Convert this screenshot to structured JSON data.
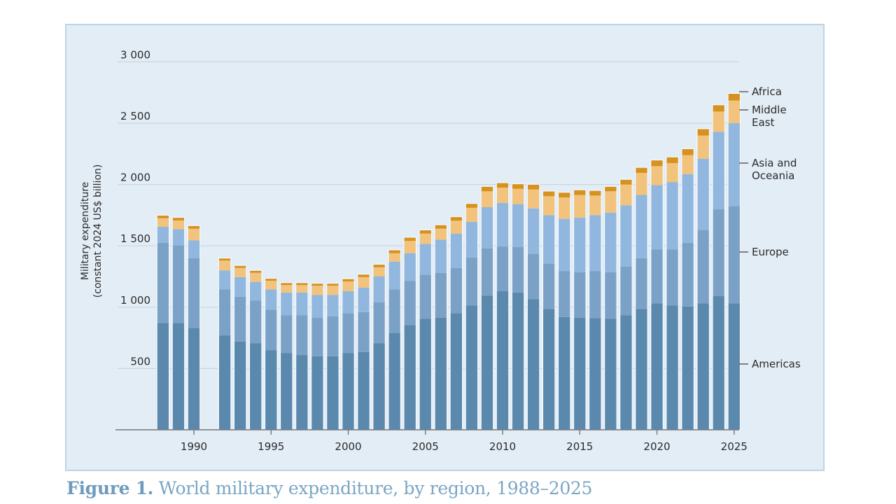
{
  "caption": {
    "label": "Figure 1.",
    "text": " World military expenditure, by region, 1988–2025"
  },
  "chart_data": {
    "type": "bar",
    "stacked": true,
    "title": "World military expenditure, by region, 1988–2025",
    "xlabel": "",
    "ylabel_line1": "Military expenditure",
    "ylabel_line2": "(constant 2024 US$ billion)",
    "ylim": [
      0,
      3000
    ],
    "yticks": [
      500,
      1000,
      1500,
      2000,
      2500,
      3000
    ],
    "ytick_labels": [
      "500",
      "1 000",
      "1 500",
      "2 000",
      "2 500",
      "3 000"
    ],
    "xticks": [
      1990,
      1995,
      2000,
      2005,
      2010,
      2015,
      2020,
      2025
    ],
    "grid": true,
    "legend": "right (direct labels)",
    "categories": [
      1988,
      1989,
      1990,
      1992,
      1993,
      1994,
      1995,
      1996,
      1997,
      1998,
      1999,
      2000,
      2001,
      2002,
      2003,
      2004,
      2005,
      2006,
      2007,
      2008,
      2009,
      2010,
      2011,
      2012,
      2013,
      2014,
      2015,
      2016,
      2017,
      2018,
      2019,
      2020,
      2021,
      2022,
      2023,
      2024,
      2025
    ],
    "series": [
      {
        "name": "Americas",
        "color": "#5b88ad",
        "values": [
          870,
          870,
          830,
          770,
          720,
          705,
          650,
          625,
          610,
          600,
          600,
          625,
          635,
          705,
          790,
          855,
          905,
          915,
          950,
          1015,
          1095,
          1130,
          1120,
          1065,
          985,
          920,
          915,
          910,
          905,
          935,
          985,
          1030,
          1015,
          1005,
          1030,
          1090,
          1030
        ]
      },
      {
        "name": "Europe",
        "color": "#7ba2c6",
        "values": [
          655,
          635,
          570,
          375,
          365,
          350,
          330,
          310,
          325,
          315,
          325,
          325,
          325,
          335,
          355,
          360,
          360,
          365,
          370,
          390,
          385,
          365,
          370,
          370,
          370,
          375,
          370,
          385,
          380,
          395,
          415,
          440,
          455,
          520,
          600,
          710,
          795
        ]
      },
      {
        "name": "Asia and Oceania",
        "color": "#92b7de",
        "values": [
          130,
          130,
          145,
          155,
          160,
          150,
          165,
          185,
          185,
          185,
          175,
          180,
          200,
          210,
          225,
          225,
          250,
          270,
          280,
          290,
          335,
          355,
          350,
          370,
          395,
          425,
          445,
          455,
          485,
          500,
          515,
          525,
          550,
          560,
          580,
          630,
          675
        ]
      },
      {
        "name": "Middle East",
        "color": "#f1c37d",
        "values": [
          70,
          72,
          95,
          80,
          75,
          75,
          70,
          60,
          60,
          75,
          75,
          80,
          85,
          75,
          70,
          100,
          85,
          90,
          105,
          115,
          130,
          125,
          125,
          155,
          155,
          175,
          185,
          160,
          175,
          170,
          180,
          155,
          155,
          155,
          190,
          165,
          185
        ]
      },
      {
        "name": "Africa",
        "color": "#d6911f",
        "values": [
          25,
          25,
          25,
          20,
          20,
          20,
          20,
          20,
          20,
          20,
          20,
          22,
          24,
          25,
          27,
          30,
          30,
          32,
          33,
          36,
          40,
          40,
          41,
          42,
          42,
          42,
          42,
          42,
          40,
          42,
          45,
          50,
          50,
          52,
          55,
          55,
          58
        ]
      }
    ]
  }
}
